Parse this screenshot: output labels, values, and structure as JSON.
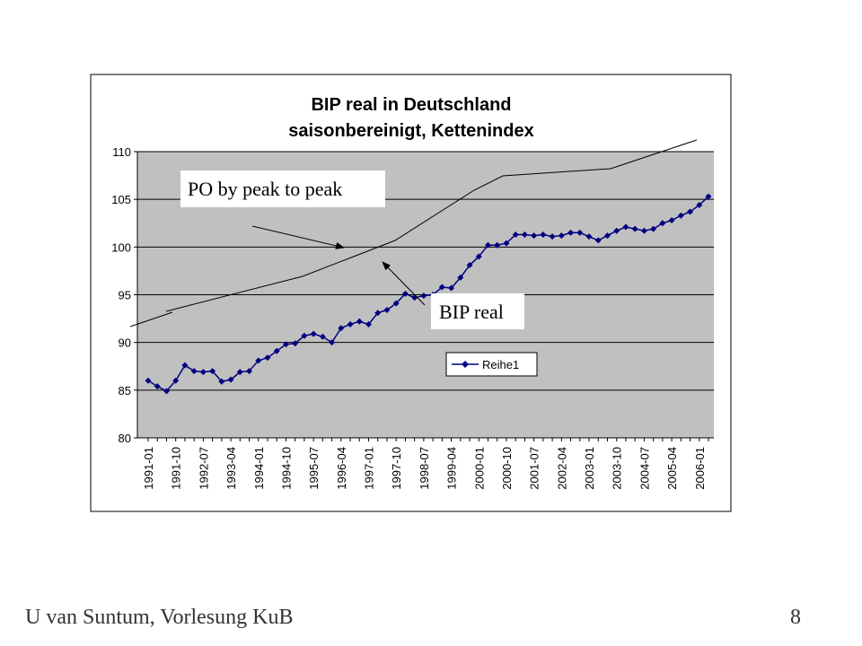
{
  "chart_data": {
    "type": "line",
    "title": "BIP real in Deutschland",
    "subtitle": "saisonbereinigt, Kettenindex",
    "categories": [
      "1991-01",
      null,
      null,
      "1991-10",
      null,
      null,
      "1992-07",
      null,
      null,
      "1993-04",
      null,
      null,
      "1994-01",
      null,
      null,
      "1994-10",
      null,
      null,
      "1995-07",
      null,
      null,
      "1996-04",
      null,
      null,
      "1997-01",
      null,
      null,
      "1997-10",
      null,
      null,
      "1998-07",
      null,
      null,
      "1999-04",
      null,
      null,
      "2000-01",
      null,
      null,
      "2000-10",
      null,
      null,
      "2001-07",
      null,
      null,
      "2002-04",
      null,
      null,
      "2003-01",
      null,
      null,
      "2003-10",
      null,
      null,
      "2004-07",
      null,
      null,
      "2005-04",
      null,
      null,
      "2006-01",
      null
    ],
    "series": [
      {
        "name": "Reihe1",
        "color": "#000080",
        "values": [
          86.0,
          85.4,
          84.9,
          86.0,
          87.6,
          87.0,
          86.9,
          87.0,
          85.9,
          86.1,
          86.9,
          87.0,
          88.1,
          88.4,
          89.1,
          89.8,
          89.9,
          90.7,
          90.9,
          90.6,
          90.0,
          91.5,
          91.9,
          92.2,
          91.9,
          93.1,
          93.4,
          94.1,
          95.1,
          94.7,
          94.9,
          95.0,
          95.8,
          95.7,
          96.8,
          98.1,
          99.0,
          100.2,
          100.2,
          100.4,
          101.3,
          101.3,
          101.2,
          101.3,
          101.1,
          101.2,
          101.5,
          101.5,
          101.1,
          100.7,
          101.2,
          101.7,
          102.1,
          101.9,
          101.7,
          101.9,
          102.5,
          102.8,
          103.3,
          103.7,
          104.4,
          105.3
        ]
      }
    ],
    "ylim": [
      80,
      110
    ],
    "yticks": [
      80,
      85,
      90,
      95,
      100,
      105,
      110
    ],
    "grid": true,
    "annotations": [
      "PO by peak to peak",
      "BIP real"
    ]
  },
  "footer": {
    "author": "U van Suntum, Vorlesung KuB",
    "page": "8"
  }
}
